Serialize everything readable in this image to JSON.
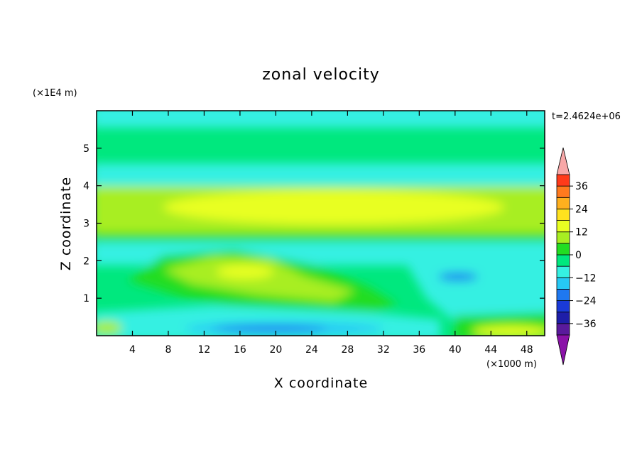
{
  "chart_data": {
    "type": "heatmap",
    "title": "zonal velocity",
    "xlabel": "X coordinate",
    "ylabel": "Z coordinate",
    "x_units": "(×1000 m)",
    "y_units": "(×1E4 m)",
    "time_label": "t=2.4624e+06",
    "xlim": [
      0,
      50
    ],
    "ylim": [
      0,
      6
    ],
    "x_ticks": [
      4,
      8,
      12,
      16,
      20,
      24,
      28,
      32,
      36,
      40,
      44,
      48
    ],
    "y_ticks": [
      1,
      2,
      3,
      4,
      5
    ],
    "x_tick_labels": [
      "4",
      "8",
      "12",
      "16",
      "20",
      "24",
      "28",
      "32",
      "36",
      "40",
      "44",
      "48"
    ],
    "y_tick_labels": [
      "1",
      "2",
      "3",
      "4",
      "5"
    ],
    "colorbar": {
      "levels": [
        -42,
        -36,
        -30,
        -24,
        -18,
        -12,
        -6,
        0,
        6,
        12,
        18,
        24,
        30,
        36,
        42
      ],
      "tick_values": [
        36,
        24,
        12,
        0,
        -12,
        -24,
        -36
      ],
      "tick_labels": [
        "36",
        "24",
        "12",
        "0",
        "−12",
        "−24",
        "−36"
      ],
      "colors": [
        "#5a1a9c",
        "#1e1ea8",
        "#1a3ad8",
        "#1f78f0",
        "#26c8f5",
        "#35f0e2",
        "#00e87e",
        "#22dd22",
        "#a8ee22",
        "#e8ff22",
        "#ffe21e",
        "#ffb01e",
        "#ff7a1e",
        "#ff3a1a"
      ],
      "under_color": "#8a12a8",
      "over_color": "#f8a8a8"
    },
    "grid": false,
    "legend": "colorbar-right"
  }
}
